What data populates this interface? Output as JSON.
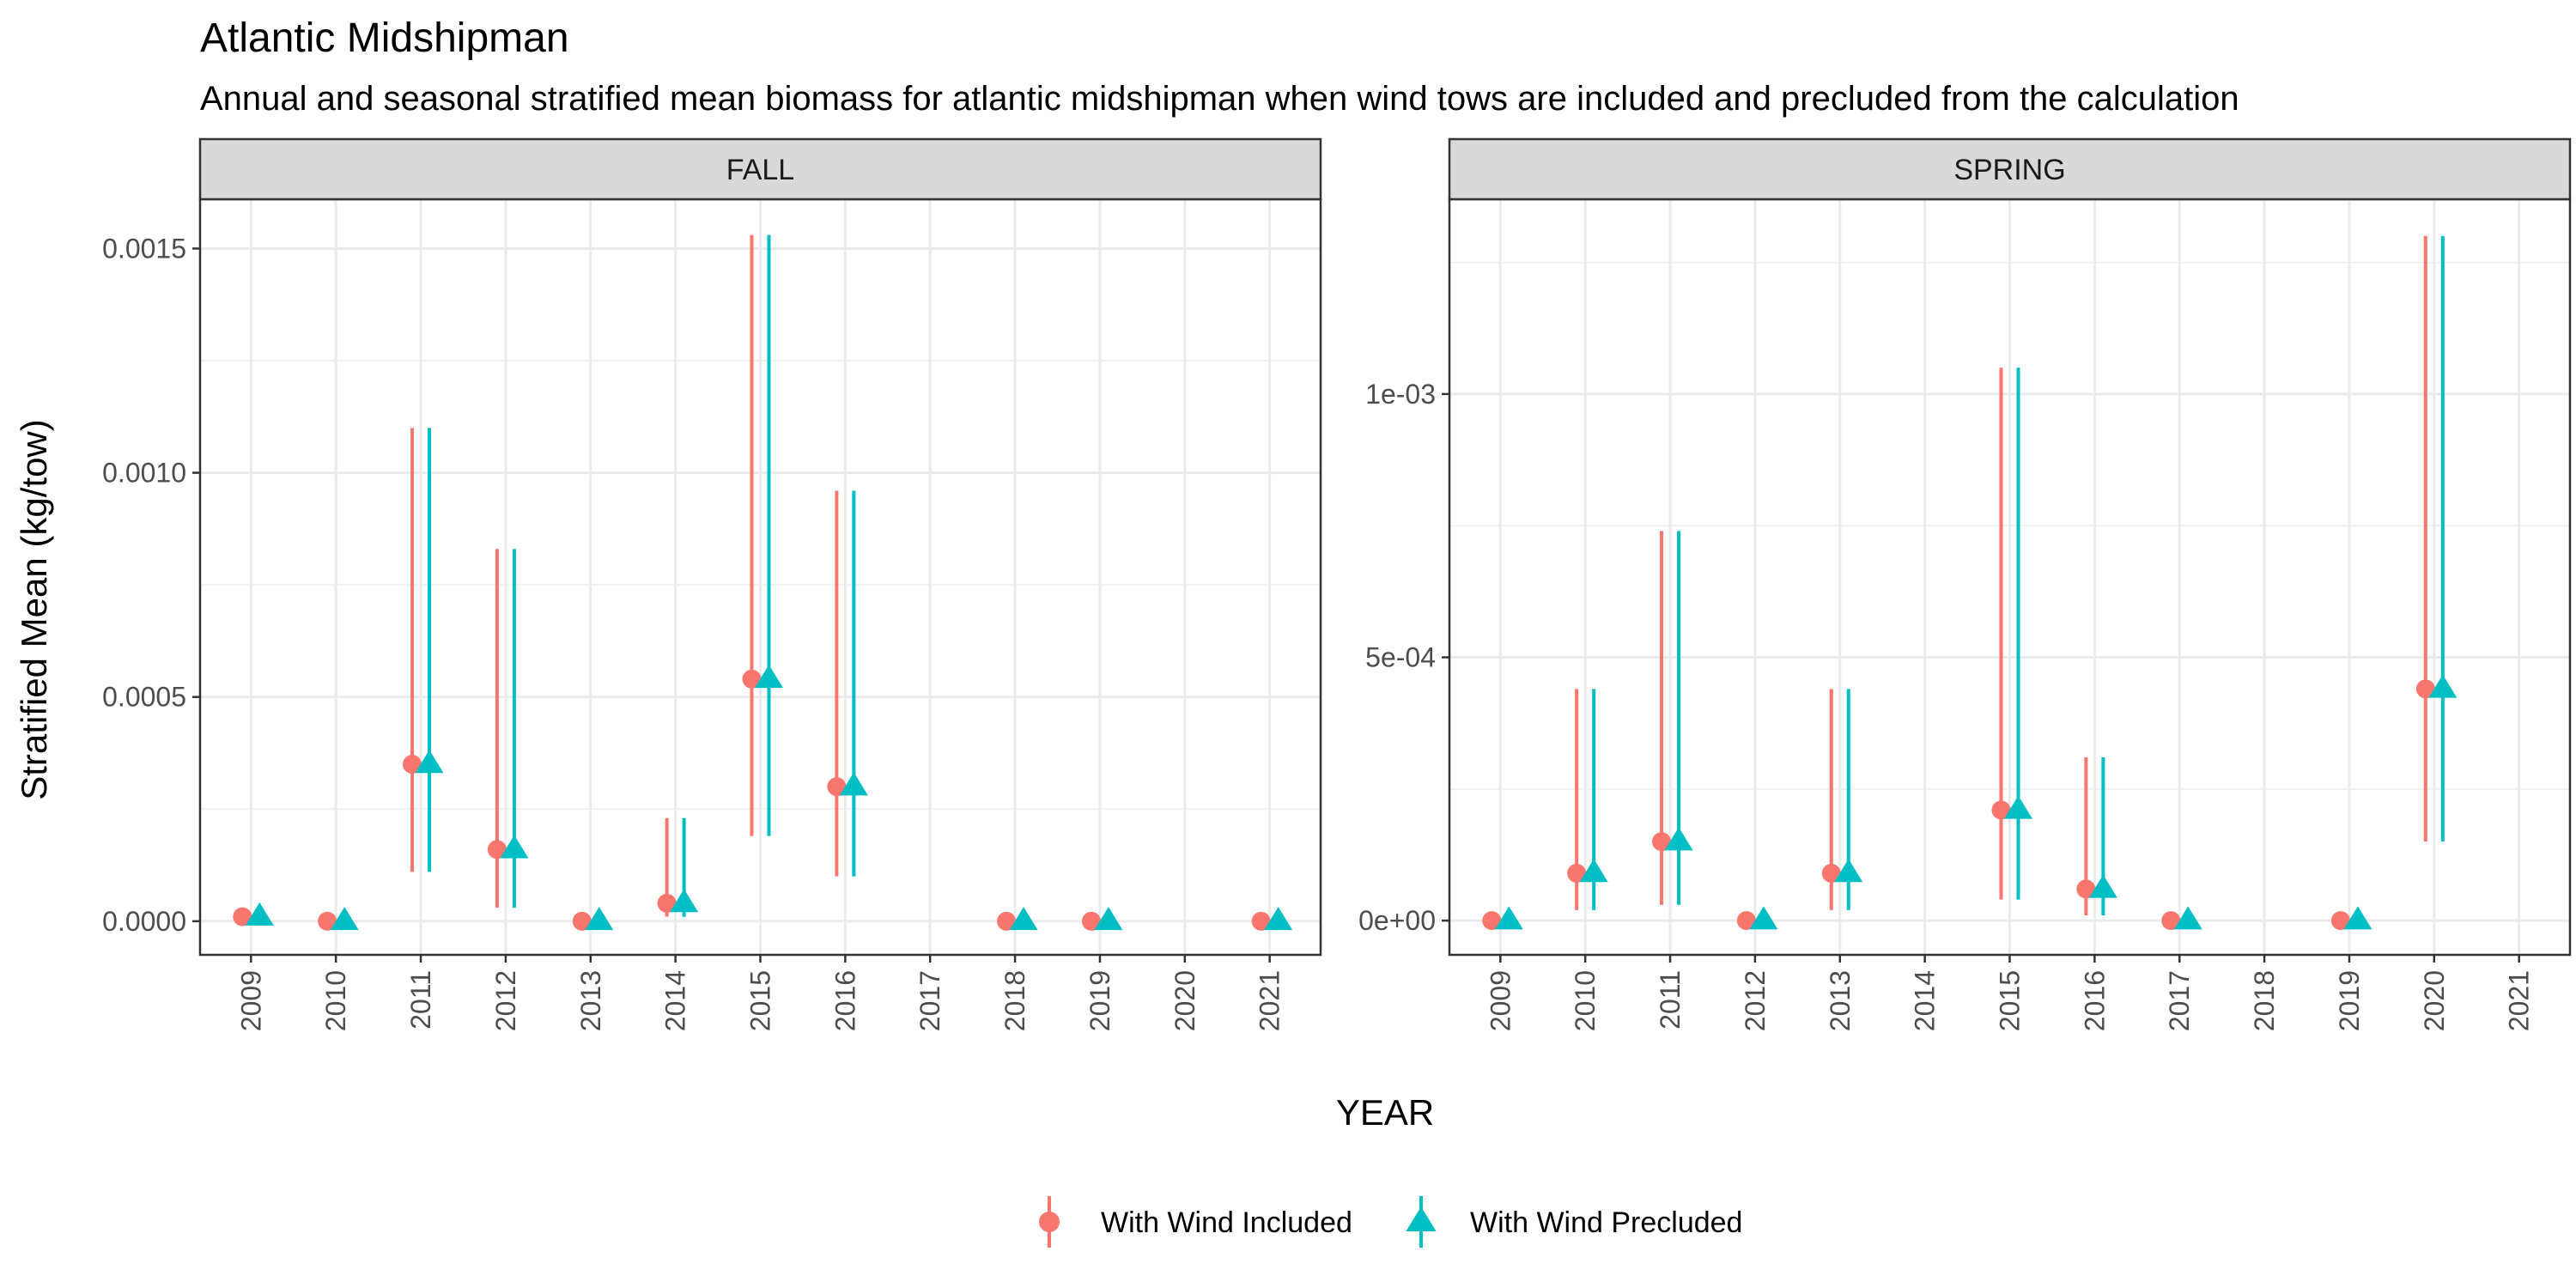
{
  "title": "Atlantic Midshipman",
  "subtitle": "Annual and seasonal stratified mean biomass for atlantic midshipman when wind tows are included and precluded from the calculation",
  "xlabel": "YEAR",
  "ylabel": "Stratified Mean (kg/tow)",
  "legend": [
    {
      "label": "With Wind Included",
      "color": "#F8766D",
      "shape": "circle"
    },
    {
      "label": "With Wind Precluded",
      "color": "#00BFC4",
      "shape": "triangle"
    }
  ],
  "chart_data": [
    {
      "type": "scatter",
      "panel": "FALL",
      "categories": [
        "2009",
        "2010",
        "2011",
        "2012",
        "2013",
        "2014",
        "2015",
        "2016",
        "2017",
        "2018",
        "2019",
        "2020",
        "2021"
      ],
      "ylim": [
        -7.5e-05,
        0.00161
      ],
      "yticks": [
        0,
        0.0005,
        0.001,
        0.0015
      ],
      "ytick_labels": [
        "0.0000",
        "0.0005",
        "0.0010",
        "0.0015"
      ],
      "grid": true,
      "series": [
        {
          "name": "With Wind Included",
          "color": "#F8766D",
          "shape": "circle",
          "points": [
            {
              "x": "2009",
              "y": 1e-05,
              "lo": null,
              "hi": null
            },
            {
              "x": "2010",
              "y": 0.0,
              "lo": null,
              "hi": null
            },
            {
              "x": "2011",
              "y": 0.00035,
              "lo": 0.00011,
              "hi": 0.0011
            },
            {
              "x": "2012",
              "y": 0.00016,
              "lo": 3e-05,
              "hi": 0.00083
            },
            {
              "x": "2013",
              "y": 0.0,
              "lo": null,
              "hi": null
            },
            {
              "x": "2014",
              "y": 4e-05,
              "lo": 1e-05,
              "hi": 0.00023
            },
            {
              "x": "2015",
              "y": 0.00054,
              "lo": 0.00019,
              "hi": 0.00153
            },
            {
              "x": "2016",
              "y": 0.0003,
              "lo": 0.0001,
              "hi": 0.00096
            },
            {
              "x": "2018",
              "y": 0.0,
              "lo": null,
              "hi": null
            },
            {
              "x": "2019",
              "y": 0.0,
              "lo": null,
              "hi": null
            },
            {
              "x": "2021",
              "y": 0.0,
              "lo": null,
              "hi": null
            }
          ]
        },
        {
          "name": "With Wind Precluded",
          "color": "#00BFC4",
          "shape": "triangle",
          "points": [
            {
              "x": "2009",
              "y": 1e-05,
              "lo": null,
              "hi": null
            },
            {
              "x": "2010",
              "y": 0.0,
              "lo": null,
              "hi": null
            },
            {
              "x": "2011",
              "y": 0.00035,
              "lo": 0.00011,
              "hi": 0.0011
            },
            {
              "x": "2012",
              "y": 0.00016,
              "lo": 3e-05,
              "hi": 0.00083
            },
            {
              "x": "2013",
              "y": 0.0,
              "lo": null,
              "hi": null
            },
            {
              "x": "2014",
              "y": 4e-05,
              "lo": 1e-05,
              "hi": 0.00023
            },
            {
              "x": "2015",
              "y": 0.00054,
              "lo": 0.00019,
              "hi": 0.00153
            },
            {
              "x": "2016",
              "y": 0.0003,
              "lo": 0.0001,
              "hi": 0.00096
            },
            {
              "x": "2018",
              "y": 0.0,
              "lo": null,
              "hi": null
            },
            {
              "x": "2019",
              "y": 0.0,
              "lo": null,
              "hi": null
            },
            {
              "x": "2021",
              "y": 0.0,
              "lo": null,
              "hi": null
            }
          ]
        }
      ]
    },
    {
      "type": "scatter",
      "panel": "SPRING",
      "categories": [
        "2009",
        "2010",
        "2011",
        "2012",
        "2013",
        "2014",
        "2015",
        "2016",
        "2017",
        "2018",
        "2019",
        "2020",
        "2021"
      ],
      "ylim": [
        -6.5e-05,
        0.00137
      ],
      "yticks": [
        0,
        0.0005,
        0.001
      ],
      "ytick_labels": [
        "0e+00",
        "5e-04",
        "1e-03"
      ],
      "grid": true,
      "series": [
        {
          "name": "With Wind Included",
          "color": "#F8766D",
          "shape": "circle",
          "points": [
            {
              "x": "2009",
              "y": 0.0,
              "lo": null,
              "hi": null
            },
            {
              "x": "2010",
              "y": 9e-05,
              "lo": 2e-05,
              "hi": 0.00044
            },
            {
              "x": "2011",
              "y": 0.00015,
              "lo": 3e-05,
              "hi": 0.00074
            },
            {
              "x": "2012",
              "y": 0.0,
              "lo": null,
              "hi": null
            },
            {
              "x": "2013",
              "y": 9e-05,
              "lo": 2e-05,
              "hi": 0.00044
            },
            {
              "x": "2015",
              "y": 0.00021,
              "lo": 4e-05,
              "hi": 0.00105
            },
            {
              "x": "2016",
              "y": 6e-05,
              "lo": 1e-05,
              "hi": 0.00031
            },
            {
              "x": "2017",
              "y": 0.0,
              "lo": null,
              "hi": null
            },
            {
              "x": "2019",
              "y": 0.0,
              "lo": null,
              "hi": null
            },
            {
              "x": "2020",
              "y": 0.00044,
              "lo": 0.00015,
              "hi": 0.0013
            }
          ]
        },
        {
          "name": "With Wind Precluded",
          "color": "#00BFC4",
          "shape": "triangle",
          "points": [
            {
              "x": "2009",
              "y": 0.0,
              "lo": null,
              "hi": null
            },
            {
              "x": "2010",
              "y": 9e-05,
              "lo": 2e-05,
              "hi": 0.00044
            },
            {
              "x": "2011",
              "y": 0.00015,
              "lo": 3e-05,
              "hi": 0.00074
            },
            {
              "x": "2012",
              "y": 0.0,
              "lo": null,
              "hi": null
            },
            {
              "x": "2013",
              "y": 9e-05,
              "lo": 2e-05,
              "hi": 0.00044
            },
            {
              "x": "2015",
              "y": 0.00021,
              "lo": 4e-05,
              "hi": 0.00105
            },
            {
              "x": "2016",
              "y": 6e-05,
              "lo": 1e-05,
              "hi": 0.00031
            },
            {
              "x": "2017",
              "y": 0.0,
              "lo": null,
              "hi": null
            },
            {
              "x": "2019",
              "y": 0.0,
              "lo": null,
              "hi": null
            },
            {
              "x": "2020",
              "y": 0.00044,
              "lo": 0.00015,
              "hi": 0.0013
            }
          ]
        }
      ]
    }
  ]
}
